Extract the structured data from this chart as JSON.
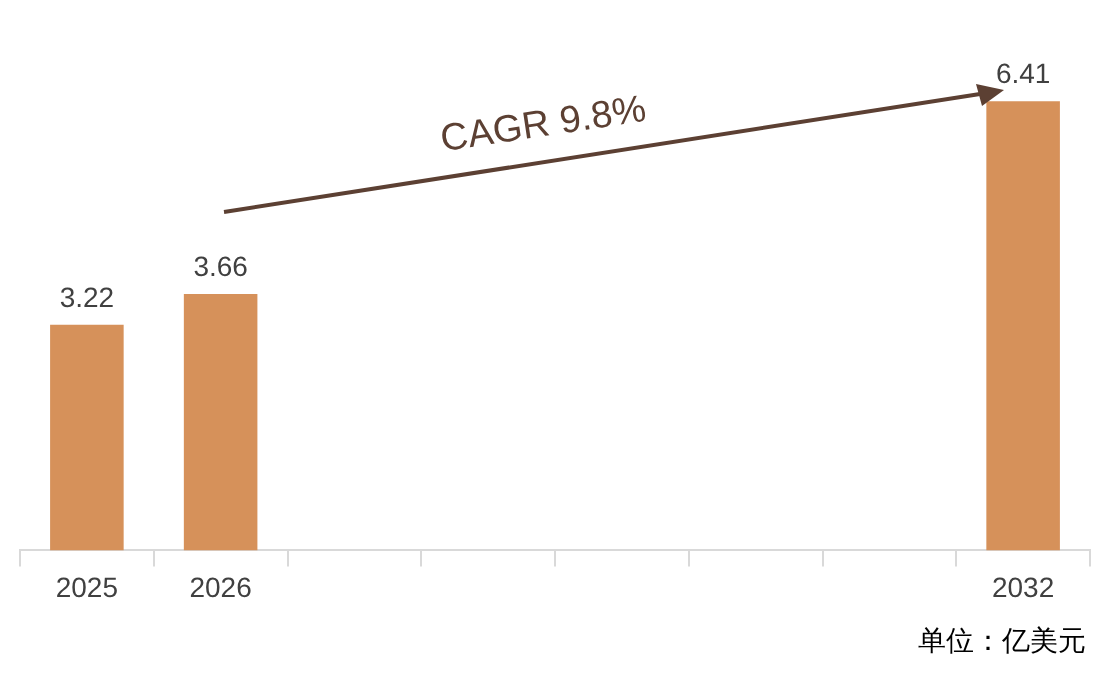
{
  "chart_data": {
    "type": "bar",
    "categories": [
      "2025",
      "2026",
      null,
      null,
      null,
      null,
      null,
      "2032"
    ],
    "values": [
      3.22,
      3.66,
      null,
      null,
      null,
      null,
      null,
      6.41
    ],
    "color": "#d6915a",
    "data_labels": true,
    "grid": false,
    "legend": false,
    "annotations": [
      "CAGR 9.8%",
      "单位：亿美元"
    ]
  }
}
